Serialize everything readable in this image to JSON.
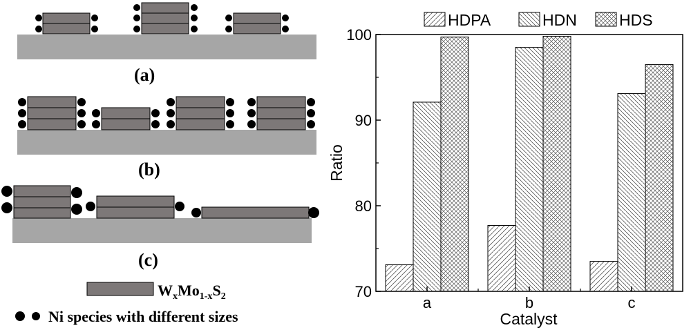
{
  "schematic": {
    "panel_labels": [
      "(a)",
      "(b)",
      "(c)"
    ],
    "legend": {
      "sheet_formula": {
        "W": "W",
        "x1": "x",
        "Mo": "Mo",
        "sub1x": "1-x",
        "S": "S",
        "two": "2"
      },
      "ni_text": "Ni species with different sizes"
    },
    "colors": {
      "slab": "#7d7878",
      "support": "#a6a6a6",
      "dot": "#000000"
    }
  },
  "chart_data": {
    "type": "bar",
    "categories": [
      "a",
      "b",
      "c"
    ],
    "series": [
      {
        "name": "HDPA",
        "values": [
          73.1,
          77.7,
          73.5
        ],
        "pattern": "diag-up"
      },
      {
        "name": "HDN",
        "values": [
          92.1,
          98.5,
          93.1
        ],
        "pattern": "diag-down"
      },
      {
        "name": "HDS",
        "values": [
          99.7,
          99.8,
          96.5
        ],
        "pattern": "crosshatch"
      }
    ],
    "xlabel": "Catalyst",
    "ylabel": "Ratio",
    "ylim": [
      70,
      100
    ],
    "yticks": [
      70,
      80,
      90,
      100
    ],
    "legend_position": "top",
    "grid": false
  }
}
